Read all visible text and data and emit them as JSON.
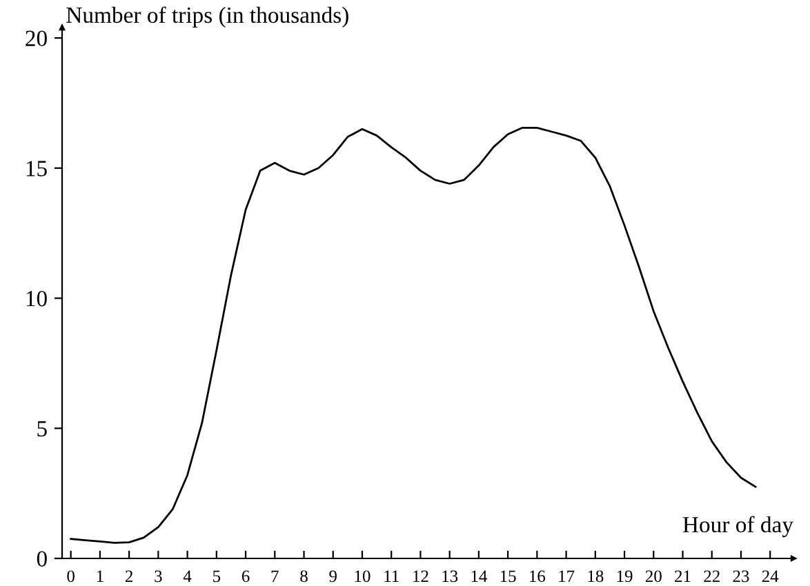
{
  "chart_data": {
    "type": "line",
    "xlabel": "Hour of day",
    "ylabel": "Number of trips (in thousands)",
    "x": [
      0,
      0.5,
      1,
      1.5,
      2,
      2.5,
      3,
      3.5,
      4,
      4.5,
      5,
      5.5,
      6,
      6.5,
      7,
      7.5,
      8,
      8.5,
      9,
      9.5,
      10,
      10.5,
      11,
      11.5,
      12,
      12.5,
      13,
      13.5,
      14,
      14.5,
      15,
      15.5,
      16,
      16.5,
      17,
      17.5,
      18,
      18.5,
      19,
      19.5,
      20,
      20.5,
      21,
      21.5,
      22,
      22.5,
      23,
      23.5
    ],
    "series": [
      {
        "color": "#000000",
        "values": [
          0.75,
          0.7,
          0.65,
          0.6,
          0.62,
          0.8,
          1.2,
          1.9,
          3.2,
          5.2,
          8.0,
          10.9,
          13.4,
          14.9,
          15.2,
          14.9,
          14.75,
          15.0,
          15.5,
          16.2,
          16.5,
          16.25,
          15.8,
          15.4,
          14.9,
          14.55,
          14.4,
          14.55,
          15.1,
          15.8,
          16.3,
          16.55,
          16.55,
          16.4,
          16.25,
          16.05,
          15.4,
          14.3,
          12.8,
          11.2,
          9.5,
          8.1,
          6.8,
          5.6,
          4.5,
          3.7,
          3.1,
          2.75
        ]
      }
    ],
    "xlim": [
      -0.3,
      24.8
    ],
    "ylim": [
      0,
      20.4
    ],
    "xticks": [
      0,
      1,
      2,
      3,
      4,
      5,
      6,
      7,
      8,
      9,
      10,
      11,
      12,
      13,
      14,
      15,
      16,
      17,
      18,
      19,
      20,
      21,
      22,
      23,
      24
    ],
    "yticks": [
      0,
      5,
      10,
      15,
      20
    ],
    "grid": false,
    "legend": false
  }
}
